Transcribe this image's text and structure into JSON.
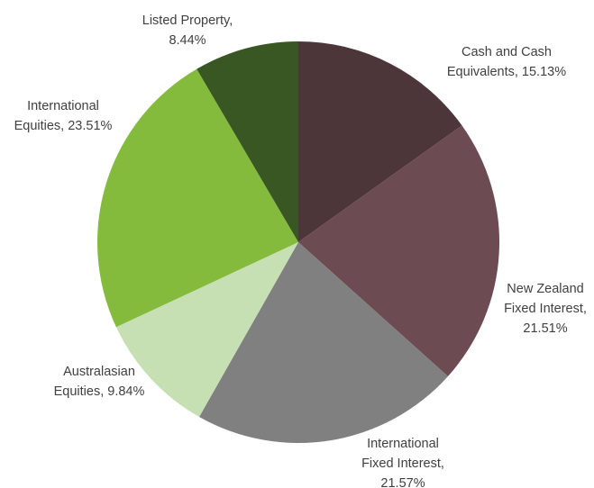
{
  "chart_data": {
    "type": "pie",
    "title": "",
    "start_angle_deg": 0,
    "direction": "clockwise",
    "slices": [
      {
        "label": "Cash and Cash Equivalents",
        "value": 15.13,
        "display": "15.13%",
        "label_lines": [
          "Cash and Cash",
          "Equivalents, 15.13%"
        ],
        "color": "#4d3639"
      },
      {
        "label": "New Zealand Fixed Interest",
        "value": 21.51,
        "display": "21.51%",
        "label_lines": [
          "New Zealand",
          "Fixed Interest,",
          "21.51%"
        ],
        "color": "#6c4b52"
      },
      {
        "label": "International Fixed Interest",
        "value": 21.57,
        "display": "21.57%",
        "label_lines": [
          "International",
          "Fixed Interest,",
          "21.57%"
        ],
        "color": "#808080"
      },
      {
        "label": "Australasian Equities",
        "value": 9.84,
        "display": "9.84%",
        "label_lines": [
          "Australasian",
          "Equities, 9.84%"
        ],
        "color": "#c6e0b4"
      },
      {
        "label": "International Equities",
        "value": 23.51,
        "display": "23.51%",
        "label_lines": [
          "International",
          "Equities, 23.51%"
        ],
        "color": "#84bb3c"
      },
      {
        "label": "Listed Property",
        "value": 8.44,
        "display": "8.44%",
        "label_lines": [
          "Listed Property,",
          "8.44%"
        ],
        "color": "#385723"
      }
    ]
  }
}
